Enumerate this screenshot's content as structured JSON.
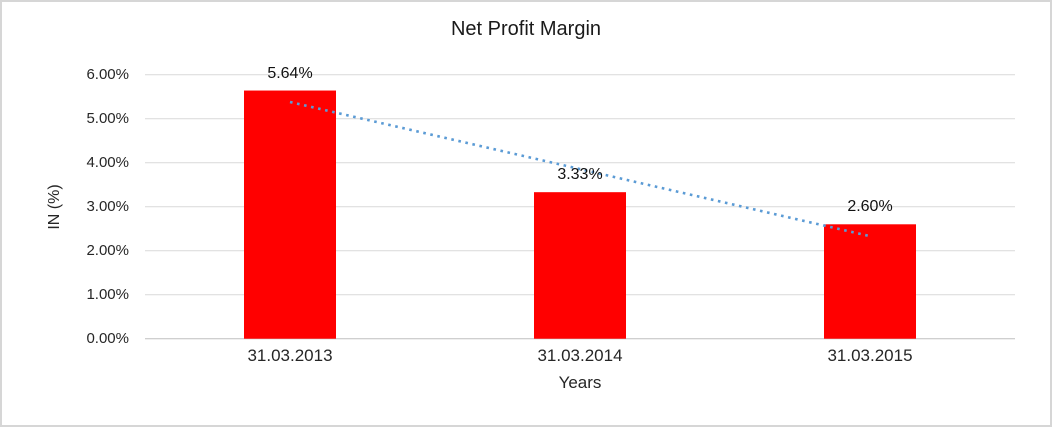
{
  "chart_data": {
    "type": "bar",
    "title": "Net Profit Margin",
    "xlabel": "Years",
    "ylabel": "IN (%)",
    "categories": [
      "31.03.2013",
      "31.03.2014",
      "31.03.2015"
    ],
    "values": [
      5.64,
      3.33,
      2.6
    ],
    "data_labels": [
      "5.64%",
      "3.33%",
      "2.60%"
    ],
    "series_name": "Net Profit Margin",
    "ylim": [
      0,
      6
    ],
    "yticks": [
      {
        "label": "0.00%",
        "value": 0
      },
      {
        "label": "1.00%",
        "value": 1
      },
      {
        "label": "2.00%",
        "value": 2
      },
      {
        "label": "3.00%",
        "value": 3
      },
      {
        "label": "4.00%",
        "value": 4
      },
      {
        "label": "5.00%",
        "value": 5
      },
      {
        "label": "6.00%",
        "value": 6
      }
    ],
    "grid": true,
    "legend_position": "none",
    "bar_color": "#ff0000",
    "gridline_color": "#d9d9d9",
    "axis_line_color": "#bfbfbf",
    "trendline": {
      "type": "linear",
      "style": "dotted",
      "color": "#5b9bd5",
      "start_value": 5.38,
      "end_value": 2.33
    }
  }
}
